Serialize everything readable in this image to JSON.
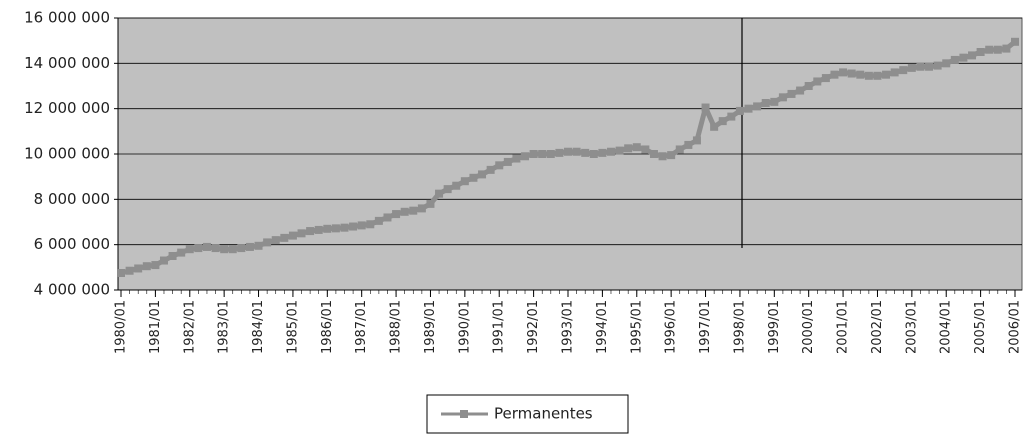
{
  "chart_data": {
    "type": "line",
    "x": [
      "1980/01",
      "1980/04",
      "1980/07",
      "1980/10",
      "1981/01",
      "1981/04",
      "1981/07",
      "1981/10",
      "1982/01",
      "1982/04",
      "1982/07",
      "1982/10",
      "1983/01",
      "1983/04",
      "1983/07",
      "1983/10",
      "1984/01",
      "1984/04",
      "1984/07",
      "1984/10",
      "1985/01",
      "1985/04",
      "1985/07",
      "1985/10",
      "1986/01",
      "1986/04",
      "1986/07",
      "1986/10",
      "1987/01",
      "1987/04",
      "1987/07",
      "1987/10",
      "1988/01",
      "1988/04",
      "1988/07",
      "1988/10",
      "1989/01",
      "1989/04",
      "1989/07",
      "1989/10",
      "1990/01",
      "1990/04",
      "1990/07",
      "1990/10",
      "1991/01",
      "1991/04",
      "1991/07",
      "1991/10",
      "1992/01",
      "1992/04",
      "1992/07",
      "1992/10",
      "1993/01",
      "1993/04",
      "1993/07",
      "1993/10",
      "1994/01",
      "1994/04",
      "1994/07",
      "1994/10",
      "1995/01",
      "1995/04",
      "1995/07",
      "1995/10",
      "1996/01",
      "1996/04",
      "1996/07",
      "1996/10",
      "1997/01",
      "1997/04",
      "1997/07",
      "1997/10",
      "1998/01",
      "1998/04",
      "1998/07",
      "1998/10",
      "1999/01",
      "1999/04",
      "1999/07",
      "1999/10",
      "2000/01",
      "2000/04",
      "2000/07",
      "2000/10",
      "2001/01",
      "2001/04",
      "2001/07",
      "2001/10",
      "2002/01",
      "2002/04",
      "2002/07",
      "2002/10",
      "2003/01",
      "2003/04",
      "2003/07",
      "2003/10",
      "2004/01",
      "2004/04",
      "2004/07",
      "2004/10",
      "2005/01",
      "2005/04",
      "2005/07",
      "2005/10",
      "2006/01"
    ],
    "series": [
      {
        "name": "Permanentes",
        "color": "#8e8e8e",
        "values": [
          4750000,
          4850000,
          4950000,
          5050000,
          5100000,
          5300000,
          5500000,
          5650000,
          5800000,
          5850000,
          5900000,
          5850000,
          5800000,
          5800000,
          5850000,
          5900000,
          5950000,
          6100000,
          6200000,
          6300000,
          6400000,
          6500000,
          6600000,
          6650000,
          6700000,
          6720000,
          6750000,
          6800000,
          6850000,
          6900000,
          7050000,
          7200000,
          7350000,
          7450000,
          7500000,
          7600000,
          7800000,
          8250000,
          8450000,
          8600000,
          8800000,
          8950000,
          9100000,
          9300000,
          9500000,
          9650000,
          9800000,
          9900000,
          10000000,
          10000000,
          10000000,
          10050000,
          10100000,
          10100000,
          10050000,
          10000000,
          10050000,
          10100000,
          10150000,
          10250000,
          10300000,
          10200000,
          10000000,
          9900000,
          9950000,
          10200000,
          10400000,
          10600000,
          12050000,
          11200000,
          11450000,
          11650000,
          11900000,
          12000000,
          12100000,
          12250000,
          12300000,
          12500000,
          12650000,
          12800000,
          13000000,
          13200000,
          13350000,
          13500000,
          13600000,
          13550000,
          13500000,
          13450000,
          13450000,
          13500000,
          13600000,
          13700000,
          13800000,
          13850000,
          13850000,
          13900000,
          14000000,
          14150000,
          14250000,
          14350000,
          14500000,
          14600000,
          14600000,
          14650000,
          14950000
        ]
      }
    ],
    "xticks": [
      "1980/01",
      "1981/01",
      "1982/01",
      "1983/01",
      "1984/01",
      "1985/01",
      "1986/01",
      "1987/01",
      "1988/01",
      "1989/01",
      "1990/01",
      "1991/01",
      "1992/01",
      "1993/01",
      "1994/01",
      "1995/01",
      "1996/01",
      "1997/01",
      "1998/01",
      "1999/01",
      "2000/01",
      "2001/01",
      "2002/01",
      "2003/01",
      "2004/01",
      "2005/01",
      "2006/01"
    ],
    "ylim": [
      4000000,
      16000000
    ],
    "yticks": [
      {
        "value": 4000000,
        "label": "4 000 000"
      },
      {
        "value": 6000000,
        "label": "6 000 000"
      },
      {
        "value": 8000000,
        "label": "8 000 000"
      },
      {
        "value": 10000000,
        "label": "10 000 000"
      },
      {
        "value": 12000000,
        "label": "12 000 000"
      },
      {
        "value": 14000000,
        "label": "14 000 000"
      },
      {
        "value": 16000000,
        "label": "16 000 000"
      }
    ],
    "grid": true,
    "legend": "bottom"
  }
}
